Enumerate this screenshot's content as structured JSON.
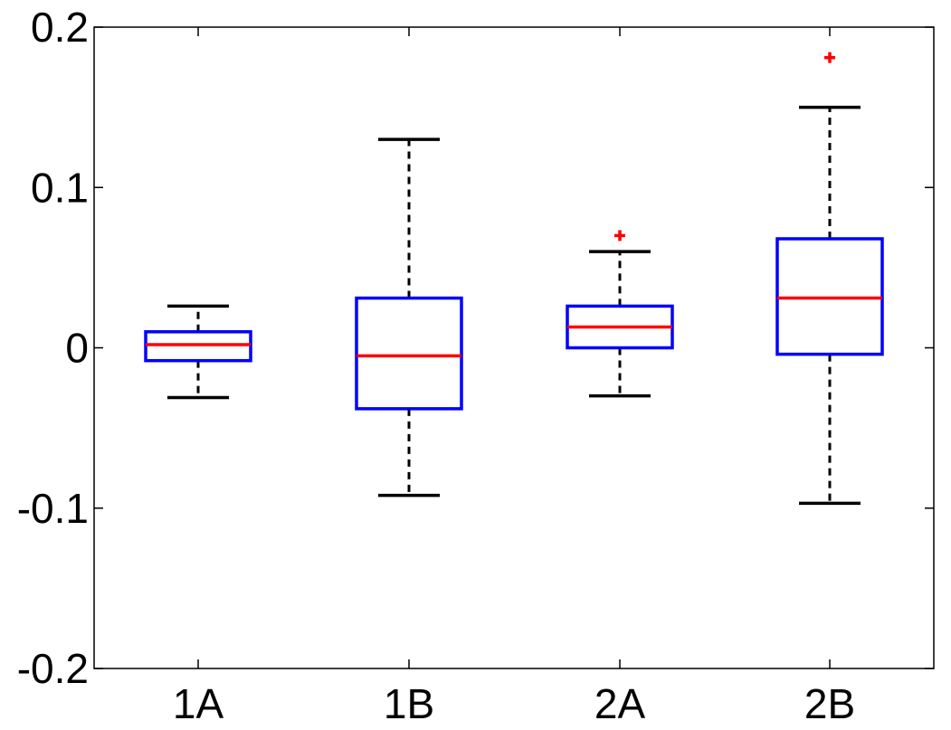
{
  "chart_data": {
    "type": "box",
    "categories": [
      "1A",
      "1B",
      "2A",
      "2B"
    ],
    "yticks": [
      -0.2,
      -0.1,
      0,
      0.1,
      0.2
    ],
    "ytick_labels": [
      "-0.2",
      "-0.1",
      "0",
      "0.1",
      "0.2"
    ],
    "ylim": [
      -0.2,
      0.2
    ],
    "boxes": [
      {
        "category": "1A",
        "whisker_low": -0.031,
        "q1": -0.008,
        "median": 0.002,
        "q3": 0.01,
        "whisker_high": 0.026,
        "outliers": []
      },
      {
        "category": "1B",
        "whisker_low": -0.092,
        "q1": -0.038,
        "median": -0.005,
        "q3": 0.031,
        "whisker_high": 0.13,
        "outliers": []
      },
      {
        "category": "2A",
        "whisker_low": -0.03,
        "q1": 0.0,
        "median": 0.013,
        "q3": 0.026,
        "whisker_high": 0.06,
        "outliers": [
          0.07
        ]
      },
      {
        "category": "2B",
        "whisker_low": -0.097,
        "q1": -0.004,
        "median": 0.031,
        "q3": 0.068,
        "whisker_high": 0.15,
        "outliers": [
          0.181
        ]
      }
    ],
    "colors": {
      "box": "#0000ff",
      "median": "#ff0000",
      "whisker": "#000000",
      "outlier": "#ff0000",
      "axes": "#000000"
    },
    "grid": false,
    "title": "",
    "xlabel": "",
    "ylabel": ""
  }
}
